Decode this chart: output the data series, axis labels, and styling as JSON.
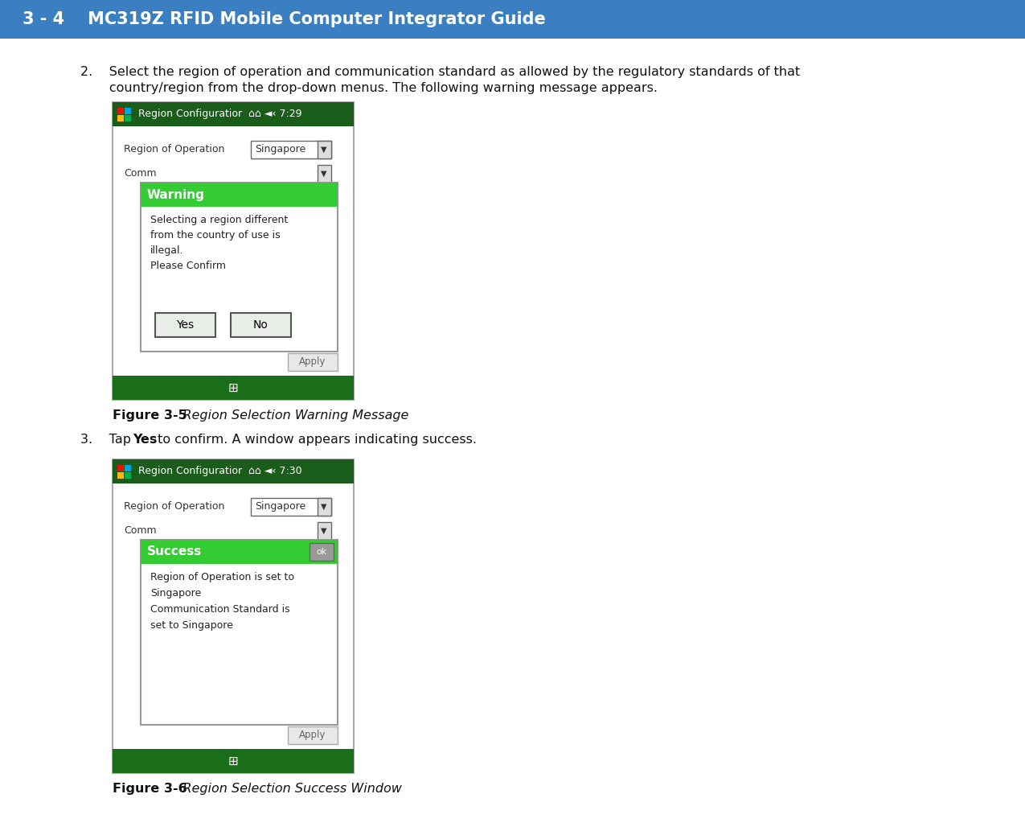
{
  "header_bg": "#3a7fc1",
  "header_text": "3 - 4    MC319Z RFID Mobile Computer Integrator Guide",
  "header_text_color": "#ffffff",
  "page_bg": "#ffffff",
  "body_text_color": "#111111",
  "win_titlebar_bg": "#1a5c1a",
  "dialog_warning_header": "#33cc33",
  "dialog_success_header": "#33cc33",
  "bottom_bar_bg": "#1a6e1a",
  "win_border": "#888888",
  "step2_line1": "2.    Select the region of operation and communication standard as allowed by the regulatory standards of that",
  "step2_line2": "       country/region from the drop-down menus. The following warning message appears.",
  "fig35_bold": "Figure 3-5",
  "fig35_italic": "   Region Selection Warning Message",
  "step3_normal1": "3.    Tap ",
  "step3_bold": "Yes",
  "step3_normal2": " to confirm. A window appears indicating success.",
  "fig36_bold": "Figure 3-6",
  "fig36_italic": "   Region Selection Success Window",
  "warn_lines": [
    "Selecting a region different",
    "from the country of use is",
    "illegal.",
    "Please Confirm"
  ],
  "succ_lines": [
    "Region of Operation is set to",
    "Singapore",
    "Communication Standard is",
    "set to Singapore"
  ],
  "colors_flag": [
    "#e8130c",
    "#00a2e8",
    "#ffb900",
    "#00b050"
  ]
}
